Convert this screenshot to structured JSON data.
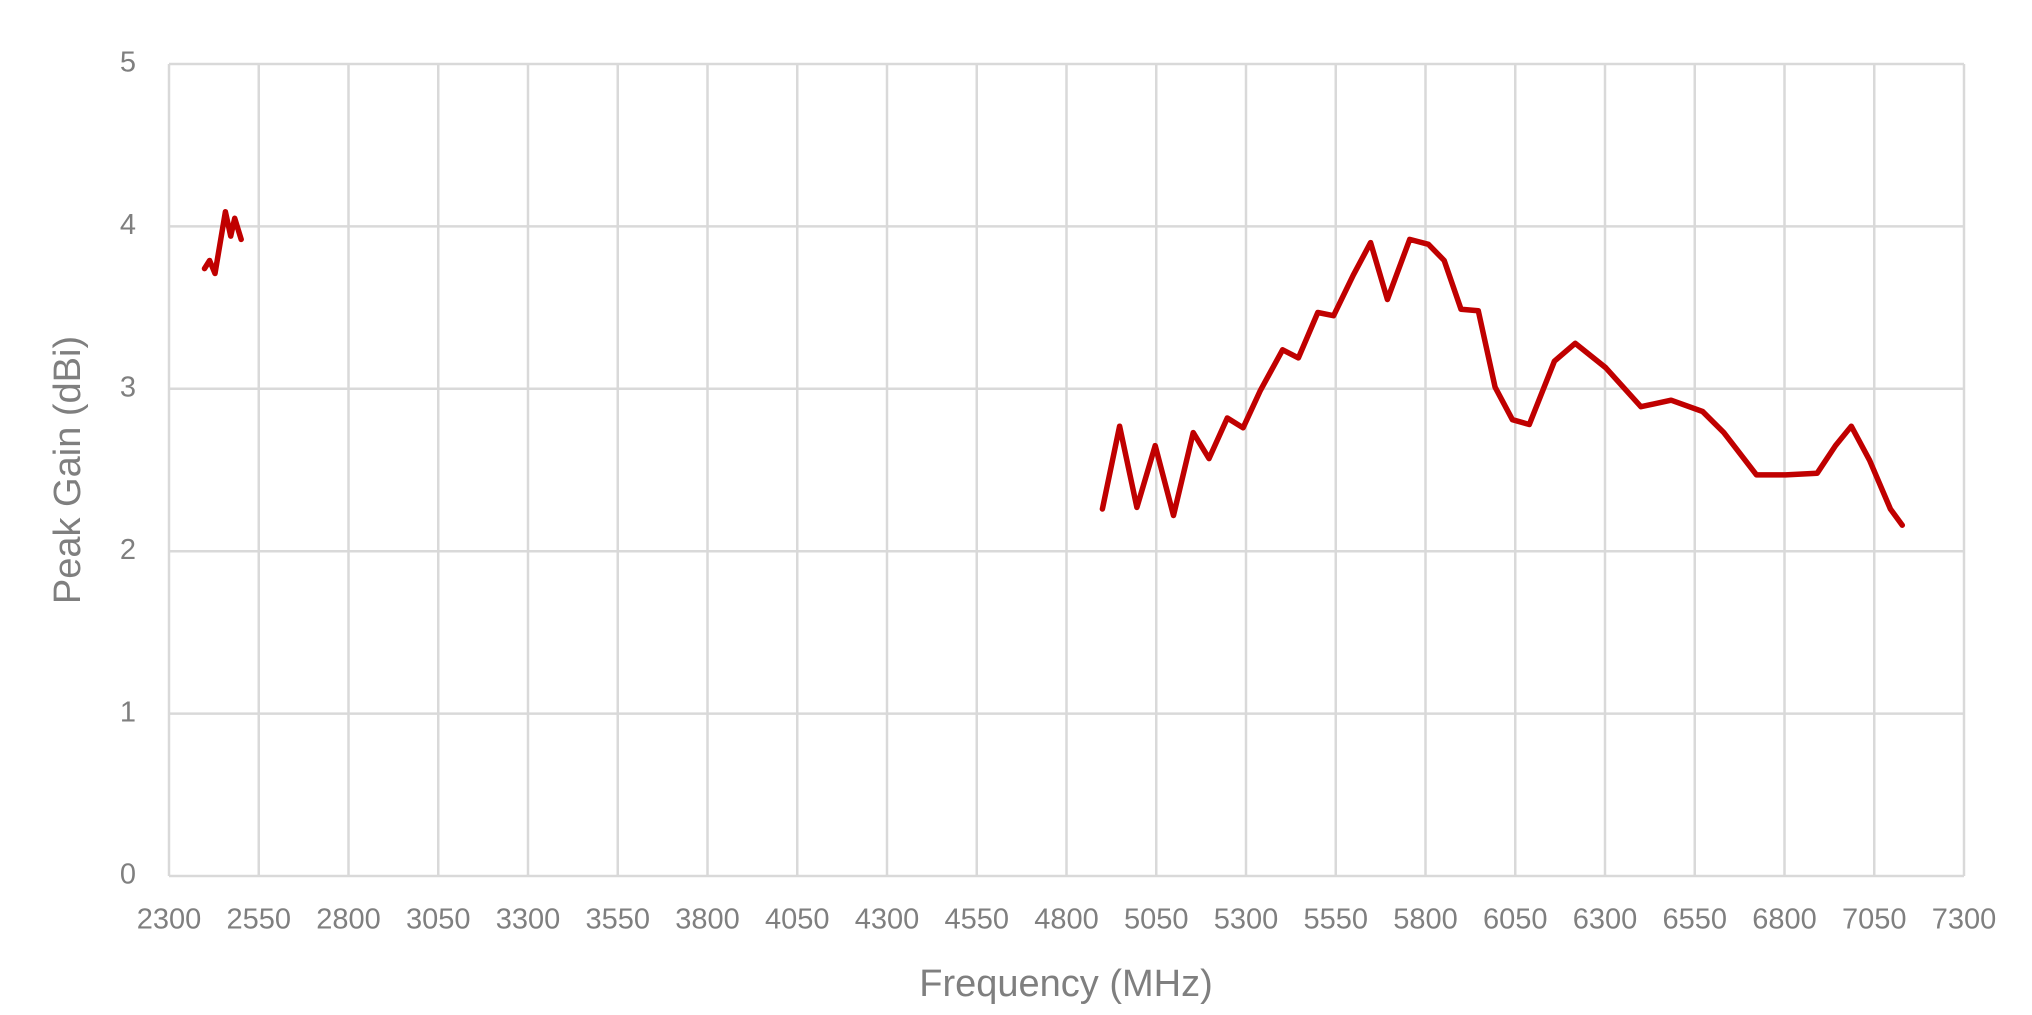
{
  "chart_data": {
    "type": "line",
    "xlabel": "Frequency (MHz)",
    "ylabel": "Peak Gain (dBi)",
    "x": [
      2399,
      2413,
      2428,
      2457,
      2472,
      2483,
      2501,
      null,
      4900,
      4948,
      4996,
      5047,
      5098,
      5153,
      5197,
      5248,
      5292,
      5340,
      5402,
      5446,
      5500,
      5544,
      5599,
      5647,
      5694,
      5756,
      5808,
      5852,
      5899,
      5947,
      5994,
      6042,
      6089,
      6159,
      6217,
      6302,
      6400,
      6484,
      6572,
      6631,
      6722,
      6803,
      6891,
      6942,
      6986,
      7037,
      7095,
      7128
    ],
    "series": [
      {
        "name": "Peak Gain",
        "color": "#c00000",
        "values": [
          3.74,
          3.79,
          3.71,
          4.09,
          3.94,
          4.05,
          3.92,
          null,
          2.26,
          2.77,
          2.27,
          2.65,
          2.22,
          2.73,
          2.57,
          2.82,
          2.76,
          2.99,
          3.24,
          3.19,
          3.47,
          3.45,
          3.7,
          3.9,
          3.55,
          3.92,
          3.89,
          3.79,
          3.49,
          3.48,
          3.01,
          2.81,
          2.78,
          3.17,
          3.28,
          3.13,
          2.89,
          2.93,
          2.86,
          2.73,
          2.47,
          2.47,
          2.48,
          2.65,
          2.77,
          2.56,
          2.26,
          2.16
        ]
      }
    ],
    "xlim": [
      2300,
      7300
    ],
    "xticks": [
      2300,
      2550,
      2800,
      3050,
      3300,
      3550,
      3800,
      4050,
      4300,
      4550,
      4800,
      5050,
      5300,
      5550,
      5800,
      6050,
      6300,
      6550,
      6800,
      7050,
      7300
    ],
    "ylim": [
      0,
      5
    ],
    "yticks": [
      0,
      1,
      2,
      3,
      4,
      5
    ],
    "grid": true
  }
}
